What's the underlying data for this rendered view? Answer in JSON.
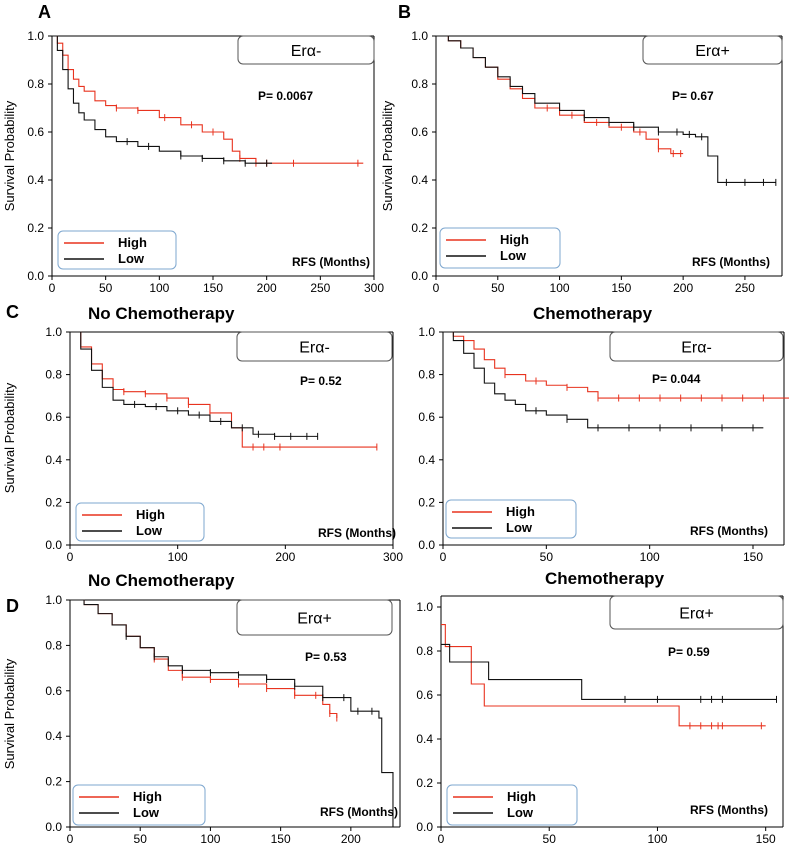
{
  "figure": {
    "letters": {
      "A": "A",
      "B": "B",
      "C": "C",
      "D": "D"
    },
    "headings": {
      "c_left": "No Chemotherapy",
      "c_right": "Chemotherapy",
      "d_left": "No Chemotherapy",
      "d_right": "Chemotherapy"
    }
  },
  "colors": {
    "high": "#e8331f",
    "low": "#111111",
    "legend_border": "#7ea7cf",
    "box_border": "#555555"
  },
  "chart_data": [
    {
      "id": "A",
      "type": "line",
      "title": "Erα-",
      "pvalue": "P= 0.0067",
      "xlabel": "RFS (Months)",
      "ylabel": "Survival Probability",
      "xlim": [
        0,
        300
      ],
      "ylim": [
        0,
        1.0
      ],
      "xticks": [
        0,
        50,
        100,
        150,
        200,
        250,
        300
      ],
      "yticks": [
        0.0,
        0.2,
        0.4,
        0.6,
        0.8,
        1.0
      ],
      "legend": [
        "High",
        "Low"
      ],
      "series": [
        {
          "name": "High",
          "x": [
            0,
            5,
            10,
            15,
            20,
            25,
            30,
            40,
            50,
            60,
            70,
            80,
            100,
            120,
            140,
            160,
            168,
            175,
            190,
            200,
            290
          ],
          "y": [
            1.0,
            0.97,
            0.92,
            0.86,
            0.82,
            0.79,
            0.77,
            0.73,
            0.71,
            0.7,
            0.7,
            0.69,
            0.66,
            0.63,
            0.6,
            0.57,
            0.52,
            0.49,
            0.47,
            0.47,
            0.47
          ],
          "censor_x": [
            60,
            80,
            105,
            130,
            150,
            175,
            190,
            200,
            225,
            285
          ]
        },
        {
          "name": "Low",
          "x": [
            0,
            5,
            10,
            15,
            20,
            25,
            30,
            40,
            50,
            60,
            80,
            100,
            120,
            140,
            160,
            180,
            205
          ],
          "y": [
            1.0,
            0.94,
            0.86,
            0.78,
            0.72,
            0.68,
            0.65,
            0.61,
            0.58,
            0.56,
            0.54,
            0.52,
            0.5,
            0.49,
            0.48,
            0.47,
            0.47
          ],
          "censor_x": [
            70,
            90,
            120,
            140,
            160,
            180,
            200
          ]
        }
      ]
    },
    {
      "id": "B",
      "type": "line",
      "title": "Erα+",
      "pvalue": "P= 0.67",
      "xlabel": "RFS (Months)",
      "ylabel": "Survival Probability",
      "xlim": [
        0,
        280
      ],
      "ylim": [
        0,
        1.0
      ],
      "xticks": [
        0,
        50,
        100,
        150,
        200,
        250
      ],
      "yticks": [
        0.0,
        0.2,
        0.4,
        0.6,
        0.8,
        1.0
      ],
      "legend": [
        "High",
        "Low"
      ],
      "series": [
        {
          "name": "High",
          "x": [
            0,
            10,
            20,
            30,
            40,
            50,
            60,
            70,
            80,
            100,
            120,
            140,
            160,
            170,
            180,
            190,
            200
          ],
          "y": [
            1.0,
            0.98,
            0.95,
            0.91,
            0.87,
            0.82,
            0.78,
            0.74,
            0.7,
            0.67,
            0.64,
            0.62,
            0.6,
            0.57,
            0.53,
            0.51,
            0.51
          ],
          "censor_x": [
            90,
            110,
            130,
            150,
            165,
            180,
            192,
            198
          ]
        },
        {
          "name": "Low",
          "x": [
            0,
            10,
            20,
            30,
            40,
            50,
            60,
            70,
            80,
            100,
            120,
            140,
            160,
            180,
            200,
            210,
            220,
            228,
            240,
            275
          ],
          "y": [
            1.0,
            0.98,
            0.95,
            0.91,
            0.87,
            0.83,
            0.79,
            0.76,
            0.72,
            0.69,
            0.66,
            0.64,
            0.62,
            0.6,
            0.59,
            0.58,
            0.5,
            0.39,
            0.39,
            0.39
          ],
          "censor_x": [
            120,
            140,
            160,
            180,
            195,
            205,
            215,
            235,
            250,
            265,
            275
          ]
        }
      ]
    },
    {
      "id": "C-left",
      "type": "line",
      "title": "Erα-",
      "pvalue": "P= 0.52",
      "xlabel": "RFS (Months)",
      "ylabel": "Survival Probability",
      "xlim": [
        0,
        300
      ],
      "ylim": [
        0,
        1.0
      ],
      "xticks": [
        0,
        100,
        200,
        300
      ],
      "yticks": [
        0.0,
        0.2,
        0.4,
        0.6,
        0.8,
        1.0
      ],
      "legend": [
        "High",
        "Low"
      ],
      "series": [
        {
          "name": "High",
          "x": [
            0,
            10,
            20,
            30,
            40,
            50,
            70,
            90,
            110,
            130,
            150,
            160,
            200,
            285
          ],
          "y": [
            1.0,
            0.93,
            0.85,
            0.78,
            0.73,
            0.72,
            0.71,
            0.69,
            0.66,
            0.62,
            0.55,
            0.46,
            0.46,
            0.46
          ],
          "censor_x": [
            50,
            70,
            90,
            110,
            130,
            170,
            180,
            195,
            285
          ]
        },
        {
          "name": "Low",
          "x": [
            0,
            10,
            20,
            30,
            40,
            50,
            70,
            90,
            110,
            130,
            150,
            170,
            190,
            230
          ],
          "y": [
            1.0,
            0.92,
            0.82,
            0.74,
            0.68,
            0.66,
            0.65,
            0.63,
            0.61,
            0.58,
            0.55,
            0.52,
            0.51,
            0.51
          ],
          "censor_x": [
            60,
            80,
            100,
            120,
            140,
            160,
            175,
            190,
            205,
            220,
            230
          ]
        }
      ]
    },
    {
      "id": "C-right",
      "type": "line",
      "title": "Erα-",
      "pvalue": "P= 0.044",
      "xlabel": "RFS (Months)",
      "ylabel": "",
      "xlim": [
        0,
        165
      ],
      "ylim": [
        0,
        1.0
      ],
      "xticks": [
        0,
        50,
        100,
        150
      ],
      "yticks": [
        0.0,
        0.2,
        0.4,
        0.6,
        0.8,
        1.0
      ],
      "legend": [
        "High",
        "Low"
      ],
      "series": [
        {
          "name": "High",
          "x": [
            0,
            5,
            10,
            15,
            20,
            25,
            30,
            40,
            50,
            60,
            70,
            75,
            100,
            130,
            170
          ],
          "y": [
            1.0,
            0.98,
            0.96,
            0.92,
            0.87,
            0.83,
            0.8,
            0.77,
            0.75,
            0.74,
            0.72,
            0.69,
            0.69,
            0.69,
            0.69
          ],
          "censor_x": [
            30,
            45,
            60,
            75,
            85,
            95,
            105,
            115,
            125,
            135,
            145,
            155
          ]
        },
        {
          "name": "Low",
          "x": [
            0,
            5,
            10,
            15,
            20,
            25,
            30,
            35,
            40,
            50,
            60,
            70,
            100,
            130,
            155
          ],
          "y": [
            1.0,
            0.96,
            0.9,
            0.83,
            0.76,
            0.71,
            0.68,
            0.66,
            0.63,
            0.61,
            0.59,
            0.55,
            0.55,
            0.55,
            0.55
          ],
          "censor_x": [
            45,
            60,
            75,
            90,
            105,
            120,
            135,
            150
          ]
        }
      ]
    },
    {
      "id": "D-left",
      "type": "line",
      "title": "Erα+",
      "pvalue": "P= 0.53",
      "xlabel": "RFS (Months)",
      "ylabel": "Survival Probability",
      "xlim": [
        0,
        235
      ],
      "ylim": [
        0,
        1.0
      ],
      "xticks": [
        0,
        50,
        100,
        150,
        200
      ],
      "yticks": [
        0.0,
        0.2,
        0.4,
        0.6,
        0.8,
        1.0
      ],
      "legend": [
        "High",
        "Low"
      ],
      "series": [
        {
          "name": "High",
          "x": [
            0,
            10,
            20,
            30,
            40,
            50,
            60,
            70,
            80,
            100,
            120,
            140,
            160,
            180,
            185,
            190
          ],
          "y": [
            1.0,
            0.98,
            0.94,
            0.89,
            0.84,
            0.79,
            0.74,
            0.69,
            0.66,
            0.65,
            0.63,
            0.61,
            0.58,
            0.54,
            0.5,
            0.48
          ],
          "censor_x": [
            60,
            80,
            100,
            120,
            140,
            160,
            175,
            185,
            190
          ]
        },
        {
          "name": "Low",
          "x": [
            0,
            10,
            20,
            30,
            40,
            50,
            60,
            70,
            80,
            100,
            120,
            140,
            160,
            180,
            200,
            220,
            222,
            228,
            230
          ],
          "y": [
            1.0,
            0.98,
            0.94,
            0.89,
            0.84,
            0.79,
            0.75,
            0.71,
            0.69,
            0.68,
            0.67,
            0.65,
            0.62,
            0.57,
            0.51,
            0.48,
            0.24,
            0.24,
            0.0
          ],
          "censor_x": [
            40,
            60,
            80,
            100,
            120,
            140,
            160,
            180,
            195,
            205,
            215
          ]
        }
      ]
    },
    {
      "id": "D-right",
      "type": "line",
      "title": "Erα+",
      "pvalue": "P= 0.59",
      "xlabel": "RFS (Months)",
      "ylabel": "",
      "xlim": [
        0,
        158
      ],
      "ylim": [
        0,
        1.05
      ],
      "xticks": [
        0,
        50,
        100,
        150
      ],
      "yticks": [
        0.0,
        0.2,
        0.4,
        0.6,
        0.8,
        1.0
      ],
      "legend": [
        "High",
        "Low"
      ],
      "series": [
        {
          "name": "High",
          "x": [
            0,
            2,
            4,
            14,
            20,
            110,
            150
          ],
          "y": [
            0.92,
            0.82,
            0.82,
            0.65,
            0.55,
            0.46,
            0.46
          ],
          "censor_x": [
            115,
            120,
            125,
            128,
            130,
            148
          ]
        },
        {
          "name": "Low",
          "x": [
            0,
            4,
            22,
            65,
            155
          ],
          "y": [
            0.83,
            0.75,
            0.67,
            0.58,
            0.58
          ],
          "censor_x": [
            85,
            100,
            120,
            125,
            130,
            155
          ]
        }
      ]
    }
  ]
}
